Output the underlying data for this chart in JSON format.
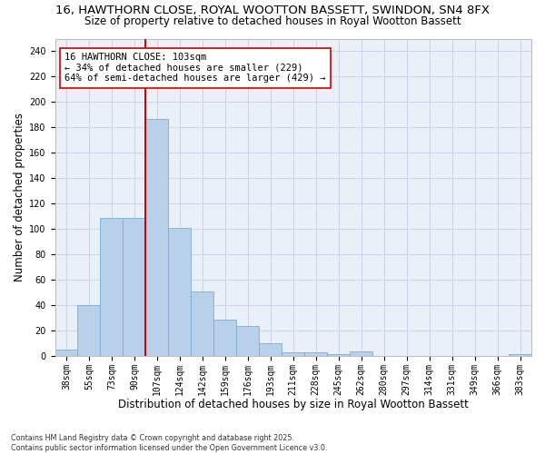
{
  "title_line1": "16, HAWTHORN CLOSE, ROYAL WOOTTON BASSETT, SWINDON, SN4 8FX",
  "title_line2": "Size of property relative to detached houses in Royal Wootton Bassett",
  "xlabel": "Distribution of detached houses by size in Royal Wootton Bassett",
  "ylabel": "Number of detached properties",
  "categories": [
    "38sqm",
    "55sqm",
    "73sqm",
    "90sqm",
    "107sqm",
    "124sqm",
    "142sqm",
    "159sqm",
    "176sqm",
    "193sqm",
    "211sqm",
    "228sqm",
    "245sqm",
    "262sqm",
    "280sqm",
    "297sqm",
    "314sqm",
    "331sqm",
    "349sqm",
    "366sqm",
    "383sqm"
  ],
  "values": [
    5,
    40,
    109,
    109,
    187,
    101,
    51,
    29,
    24,
    10,
    3,
    3,
    2,
    4,
    0,
    0,
    0,
    0,
    0,
    0,
    2
  ],
  "bar_color": "#b8d0ea",
  "bar_edge_color": "#7aaed4",
  "vline_x_index": 4,
  "vline_color": "#cc0000",
  "annotation_text": "16 HAWTHORN CLOSE: 103sqm\n← 34% of detached houses are smaller (229)\n64% of semi-detached houses are larger (429) →",
  "annotation_box_facecolor": "#ffffff",
  "annotation_box_edgecolor": "#cc0000",
  "ylim": [
    0,
    250
  ],
  "yticks": [
    0,
    20,
    40,
    60,
    80,
    100,
    120,
    140,
    160,
    180,
    200,
    220,
    240
  ],
  "grid_color": "#c8d4e8",
  "background_color": "#eaf0f8",
  "footer_text": "Contains HM Land Registry data © Crown copyright and database right 2025.\nContains public sector information licensed under the Open Government Licence v3.0.",
  "title_fontsize": 9.5,
  "subtitle_fontsize": 8.5,
  "xlabel_fontsize": 8.5,
  "ylabel_fontsize": 8.5,
  "tick_fontsize": 7,
  "annotation_fontsize": 7.5,
  "footer_fontsize": 5.8
}
